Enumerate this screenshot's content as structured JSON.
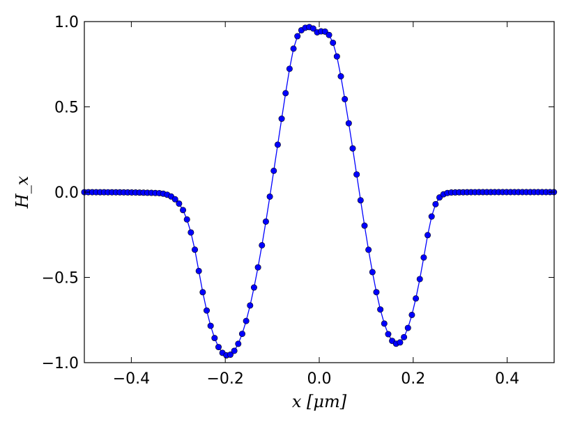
{
  "chart_data": {
    "type": "line",
    "title": "",
    "xlabel": "x [μm]",
    "ylabel": "H_x",
    "xlim": [
      -0.5,
      0.5
    ],
    "ylim": [
      -1.0,
      1.0
    ],
    "xticks": [
      -0.4,
      -0.2,
      0.0,
      0.2,
      0.4
    ],
    "xtick_labels": [
      "−0.4",
      "−0.2",
      "0.0",
      "0.2",
      "0.4"
    ],
    "yticks": [
      -1.0,
      -0.5,
      0.0,
      0.5,
      1.0
    ],
    "ytick_labels": [
      "−1.0",
      "−0.5",
      "0.0",
      "0.5",
      "1.0"
    ],
    "grid": false,
    "legend": "none",
    "series": [
      {
        "color": "#0000ff",
        "marker": "circle",
        "x": [
          -0.5,
          -0.4916,
          -0.4832,
          -0.4748,
          -0.4664,
          -0.458,
          -0.4496,
          -0.4412,
          -0.4328,
          -0.4244,
          -0.416,
          -0.4076,
          -0.3992,
          -0.3908,
          -0.3824,
          -0.374,
          -0.3656,
          -0.3572,
          -0.3488,
          -0.3404,
          -0.332,
          -0.3236,
          -0.3152,
          -0.3068,
          -0.2984,
          -0.29,
          -0.2816,
          -0.2732,
          -0.2648,
          -0.2564,
          -0.248,
          -0.2396,
          -0.2312,
          -0.2228,
          -0.2144,
          -0.206,
          -0.1976,
          -0.1892,
          -0.1808,
          -0.1724,
          -0.164,
          -0.1556,
          -0.1472,
          -0.1388,
          -0.1304,
          -0.122,
          -0.1136,
          -0.1052,
          -0.0968,
          -0.0884,
          -0.08,
          -0.0716,
          -0.0632,
          -0.0548,
          -0.0464,
          -0.038,
          -0.0296,
          -0.0212,
          -0.0128,
          -0.0044,
          0.004,
          0.0124,
          0.0208,
          0.0292,
          0.0376,
          0.046,
          0.0544,
          0.0628,
          0.0712,
          0.0796,
          0.088,
          0.0964,
          0.1048,
          0.1132,
          0.1216,
          0.13,
          0.1384,
          0.1468,
          0.1552,
          0.1636,
          0.172,
          0.1804,
          0.1888,
          0.1972,
          0.2056,
          0.214,
          0.2224,
          0.2308,
          0.2392,
          0.2476,
          0.256,
          0.2644,
          0.2728,
          0.2812,
          0.2896,
          0.298,
          0.3064,
          0.3148,
          0.3232,
          0.3316,
          0.34,
          0.3484,
          0.3568,
          0.3652,
          0.3736,
          0.382,
          0.3904,
          0.3988,
          0.4072,
          0.4156,
          0.424,
          0.4324,
          0.4408,
          0.4492,
          0.4576,
          0.466,
          0.4744,
          0.4828,
          0.4912,
          0.4996
        ],
        "y": [
          -0.0003,
          -0.0004,
          -0.0004,
          -0.0005,
          -0.0006,
          -0.0007,
          -0.0008,
          -0.0009,
          -0.001,
          -0.0012,
          -0.0014,
          -0.0017,
          -0.0019,
          -0.0023,
          -0.0027,
          -0.0031,
          -0.0037,
          -0.0043,
          -0.0051,
          -0.0059,
          -0.0094,
          -0.0154,
          -0.0257,
          -0.042,
          -0.0673,
          -0.1052,
          -0.1602,
          -0.2366,
          -0.3373,
          -0.4623,
          -0.5869,
          -0.6943,
          -0.7841,
          -0.8557,
          -0.9085,
          -0.9424,
          -0.9572,
          -0.9531,
          -0.9304,
          -0.8894,
          -0.8309,
          -0.7556,
          -0.6647,
          -0.5594,
          -0.4412,
          -0.3117,
          -0.1728,
          -0.0265,
          0.125,
          0.2782,
          0.4305,
          0.5801,
          0.7232,
          0.8413,
          0.9141,
          0.9491,
          0.964,
          0.9678,
          0.9592,
          0.9369,
          0.9426,
          0.9412,
          0.9215,
          0.8757,
          0.7955,
          0.6791,
          0.5452,
          0.4038,
          0.2562,
          0.1038,
          -0.0481,
          -0.1966,
          -0.338,
          -0.4691,
          -0.5867,
          -0.6881,
          -0.7708,
          -0.8328,
          -0.8724,
          -0.8888,
          -0.8813,
          -0.8503,
          -0.7962,
          -0.72,
          -0.6237,
          -0.51,
          -0.3835,
          -0.2522,
          -0.143,
          -0.0708,
          -0.0313,
          -0.0128,
          -0.0049,
          -0.0023,
          -0.0017,
          -0.0012,
          -0.0009,
          -0.0006,
          -0.0004,
          -0.0003,
          -0.0002,
          -0.0001,
          -0.0001,
          -0.0001,
          -0.0,
          -0.0,
          -0.0,
          -0.0,
          -0.0,
          -0.0,
          -0.0,
          -0.0,
          -0.0,
          -0.0,
          -0.0,
          -0.0,
          -0.0,
          -0.0,
          -0.0,
          -0.0
        ]
      }
    ]
  }
}
